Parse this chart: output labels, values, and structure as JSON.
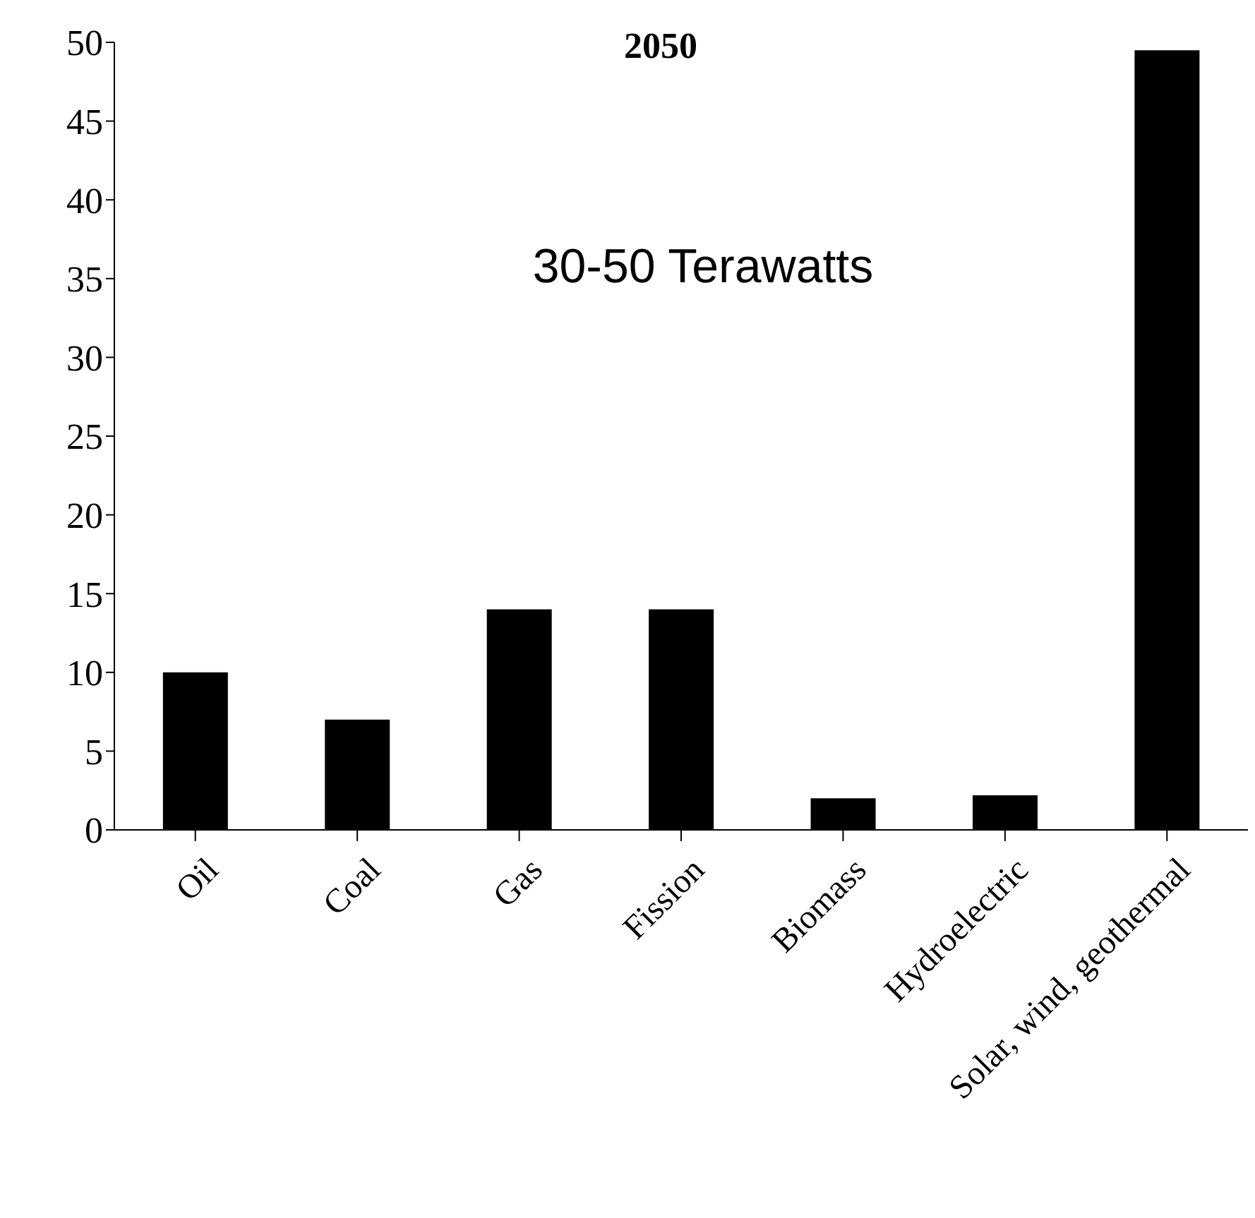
{
  "chart_data": {
    "type": "bar",
    "title": "2050",
    "annotations": [
      "30-50 Terawatts"
    ],
    "categories": [
      "Oil",
      "Coal",
      "Gas",
      "Fission",
      "Biomass",
      "Hydroelectric",
      "Solar, wind, geothermal"
    ],
    "values": [
      10,
      7,
      14,
      14,
      2,
      2.2,
      49.5
    ],
    "color": "#000000",
    "ylim": [
      0,
      50
    ],
    "yticks": [
      0,
      5,
      10,
      15,
      20,
      25,
      30,
      35,
      40,
      45,
      50
    ],
    "grid": false,
    "legend": false
  }
}
